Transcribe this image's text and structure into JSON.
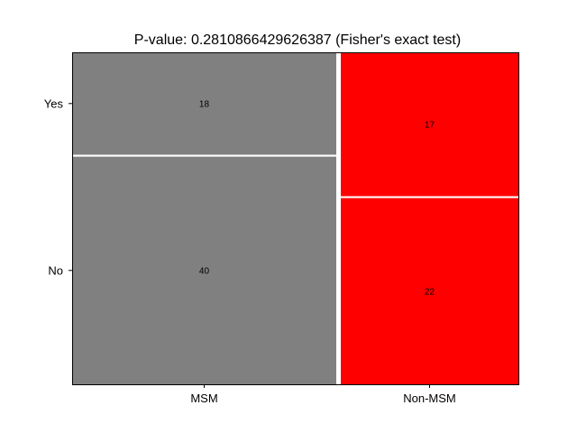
{
  "chart_data": {
    "type": "mosaic",
    "title": "P-value: 0.2810866429626387 (Fisher's exact test)",
    "xlabel": "",
    "ylabel": "",
    "categories": [
      "MSM",
      "Non-MSM"
    ],
    "row_categories": [
      "Yes",
      "No"
    ],
    "series": [
      {
        "name": "Yes",
        "values": [
          18,
          17
        ]
      },
      {
        "name": "No",
        "values": [
          40,
          22
        ]
      }
    ],
    "cells": [
      {
        "column": "MSM",
        "row": "Yes",
        "count": 18,
        "label": "18"
      },
      {
        "column": "MSM",
        "row": "No",
        "count": 40,
        "label": "40"
      },
      {
        "column": "Non-MSM",
        "row": "Yes",
        "count": 17,
        "label": "17"
      },
      {
        "column": "Non-MSM",
        "row": "No",
        "count": 22,
        "label": "22"
      }
    ],
    "column_colors": {
      "MSM": "#808080",
      "Non-MSM": "#ff0000"
    },
    "separator_color": "#ffffff",
    "grid": false,
    "legend": "none"
  }
}
